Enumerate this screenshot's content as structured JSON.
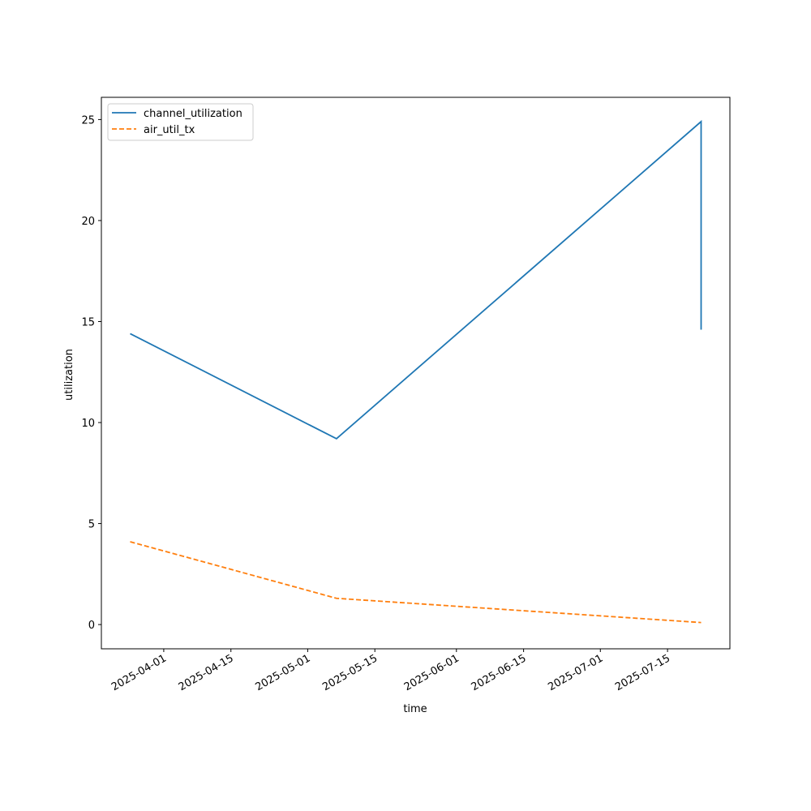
{
  "chart_data": {
    "type": "line",
    "x": [
      "2025-03-25",
      "2025-05-07",
      "2025-07-22",
      "2025-07-22"
    ],
    "series": [
      {
        "name": "channel_utilization",
        "color": "#1f77b4",
        "linestyle": "solid",
        "values": [
          14.4,
          9.2,
          24.9,
          14.6
        ]
      },
      {
        "name": "air_util_tx",
        "color": "#ff7f0e",
        "linestyle": "dashed",
        "values": [
          4.1,
          1.3,
          0.1,
          0.1
        ]
      }
    ],
    "xlabel": "time",
    "ylabel": "utilization",
    "xlim": [
      "2025-03-19",
      "2025-07-28"
    ],
    "xticks": [
      "2025-04-01",
      "2025-04-15",
      "2025-05-01",
      "2025-05-15",
      "2025-06-01",
      "2025-06-15",
      "2025-07-01",
      "2025-07-15"
    ],
    "ylim": [
      -1.2,
      26.1
    ],
    "yticks": [
      0,
      5,
      10,
      15,
      20,
      25
    ],
    "legend": "upper left",
    "grid": false
  }
}
